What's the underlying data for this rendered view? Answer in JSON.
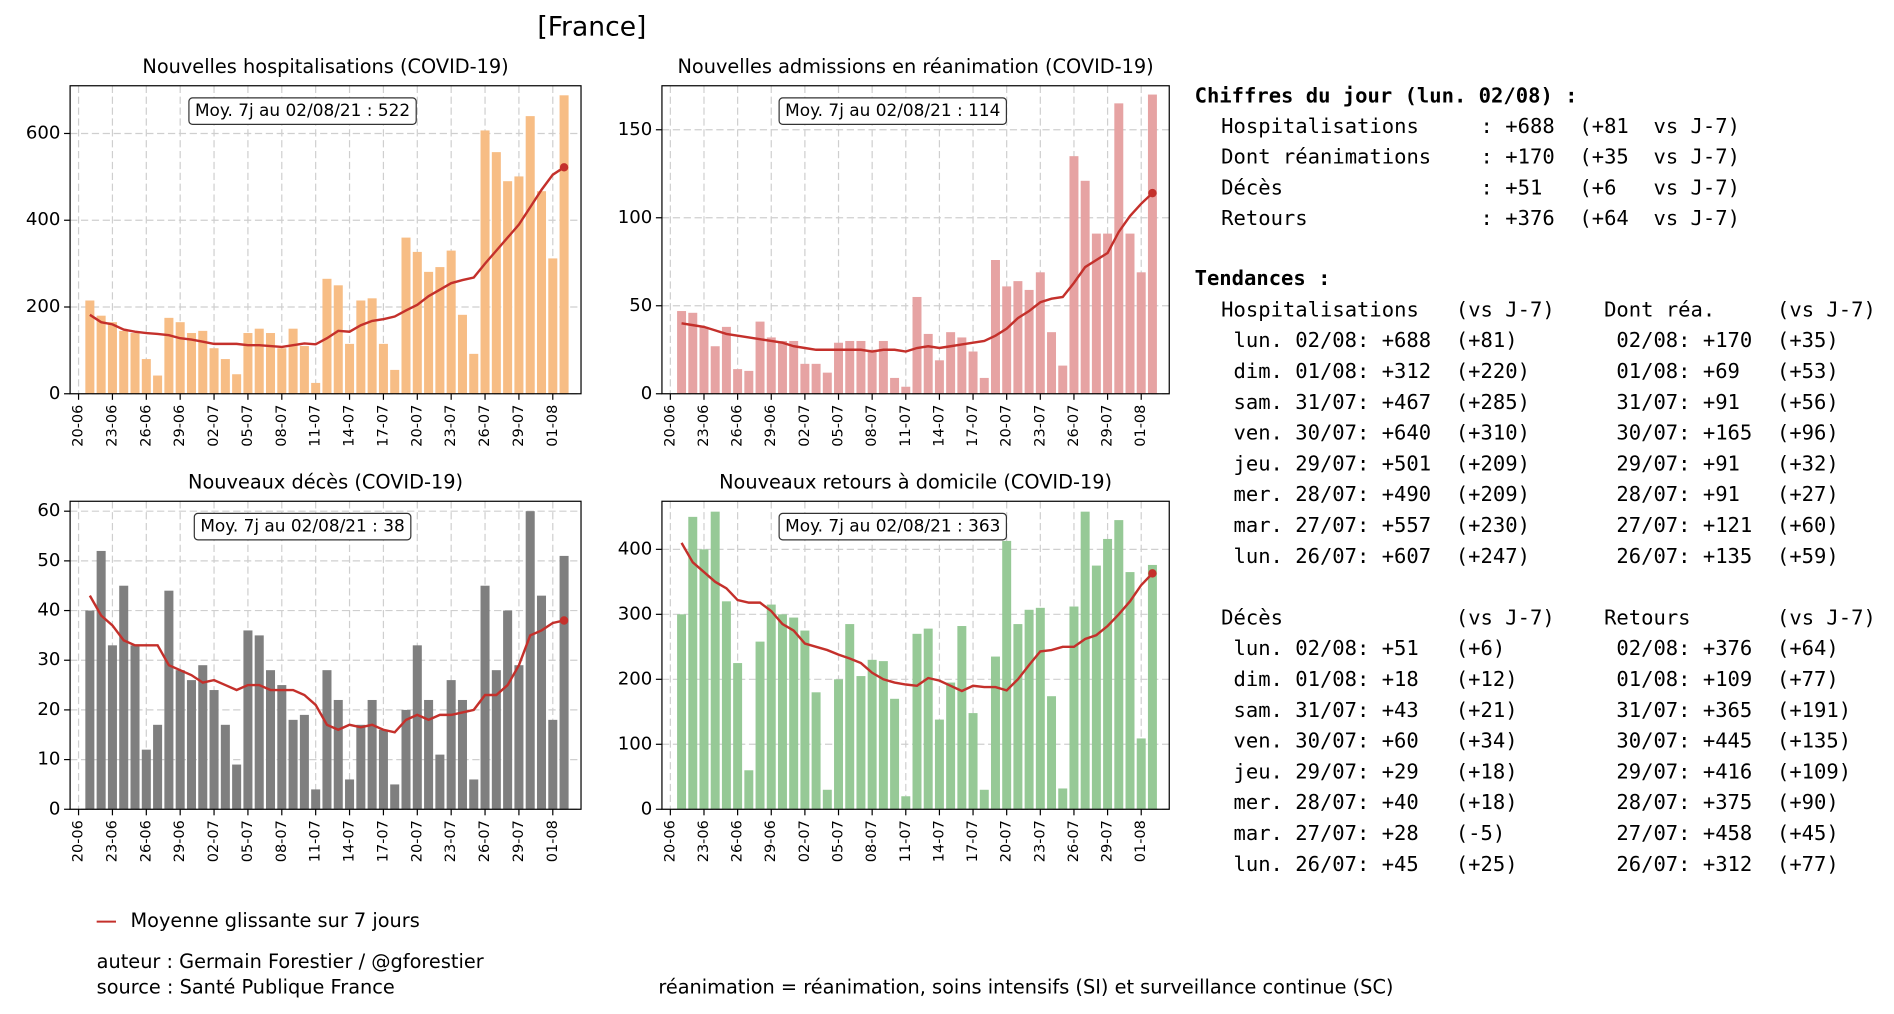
{
  "title": "[France]",
  "chart_data": [
    {
      "type": "bar",
      "title": "Nouvelles hospitalisations (COVID-19)",
      "annotation": "Moy. 7j au 02/08/21 : 522",
      "x": [
        0,
        1,
        2,
        3,
        4,
        5,
        6,
        7,
        8,
        9,
        10,
        11,
        12,
        13,
        14,
        15,
        16,
        17,
        18,
        19,
        20,
        21,
        22,
        23,
        24,
        25,
        26,
        27,
        28,
        29,
        30,
        31,
        32,
        33,
        34,
        35,
        36,
        37,
        38,
        39,
        40,
        41,
        42
      ],
      "xlim": [
        -1.75,
        43.5
      ],
      "xticks": [
        {
          "value": -1,
          "label": "20-06"
        },
        {
          "value": 2,
          "label": "23-06"
        },
        {
          "value": 5,
          "label": "26-06"
        },
        {
          "value": 8,
          "label": "29-06"
        },
        {
          "value": 11,
          "label": "02-07"
        },
        {
          "value": 14,
          "label": "05-07"
        },
        {
          "value": 17,
          "label": "08-07"
        },
        {
          "value": 20,
          "label": "11-07"
        },
        {
          "value": 23,
          "label": "14-07"
        },
        {
          "value": 26,
          "label": "17-07"
        },
        {
          "value": 29,
          "label": "20-07"
        },
        {
          "value": 32,
          "label": "23-07"
        },
        {
          "value": 35,
          "label": "26-07"
        },
        {
          "value": 38,
          "label": "29-07"
        },
        {
          "value": 41,
          "label": "01-08"
        }
      ],
      "ylim": [
        0,
        710
      ],
      "yticks": [
        0,
        200,
        400,
        600
      ],
      "grid": true,
      "series": [
        {
          "color": "#f7bd85",
          "values": [
            215,
            180,
            165,
            145,
            140,
            80,
            42,
            175,
            165,
            140,
            145,
            105,
            80,
            45,
            140,
            150,
            140,
            105,
            150,
            110,
            25,
            265,
            250,
            115,
            215,
            220,
            115,
            55,
            360,
            327,
            281,
            292,
            330,
            182,
            92,
            607,
            557,
            490,
            501,
            640,
            467,
            312,
            688
          ]
        },
        {
          "type": "line",
          "color": "#c4302b",
          "values": [
            182,
            165,
            160,
            148,
            143,
            140,
            138,
            135,
            128,
            125,
            120,
            115,
            115,
            115,
            112,
            112,
            110,
            108,
            112,
            116,
            114,
            128,
            145,
            143,
            158,
            168,
            172,
            178,
            192,
            205,
            225,
            240,
            255,
            262,
            268,
            300,
            330,
            360,
            390,
            430,
            470,
            505,
            522
          ]
        }
      ]
    },
    {
      "type": "bar",
      "title": "Nouvelles admissions en réanimation (COVID-19)",
      "annotation": "Moy. 7j au 02/08/21 : 114",
      "x": [
        0,
        1,
        2,
        3,
        4,
        5,
        6,
        7,
        8,
        9,
        10,
        11,
        12,
        13,
        14,
        15,
        16,
        17,
        18,
        19,
        20,
        21,
        22,
        23,
        24,
        25,
        26,
        27,
        28,
        29,
        30,
        31,
        32,
        33,
        34,
        35,
        36,
        37,
        38,
        39,
        40,
        41,
        42
      ],
      "xlim": [
        -1.75,
        43.5
      ],
      "xticks": [
        {
          "value": -1,
          "label": "20-06"
        },
        {
          "value": 2,
          "label": "23-06"
        },
        {
          "value": 5,
          "label": "26-06"
        },
        {
          "value": 8,
          "label": "29-06"
        },
        {
          "value": 11,
          "label": "02-07"
        },
        {
          "value": 14,
          "label": "05-07"
        },
        {
          "value": 17,
          "label": "08-07"
        },
        {
          "value": 20,
          "label": "11-07"
        },
        {
          "value": 23,
          "label": "14-07"
        },
        {
          "value": 26,
          "label": "17-07"
        },
        {
          "value": 29,
          "label": "20-07"
        },
        {
          "value": 32,
          "label": "23-07"
        },
        {
          "value": 35,
          "label": "26-07"
        },
        {
          "value": 38,
          "label": "29-07"
        },
        {
          "value": 41,
          "label": "01-08"
        }
      ],
      "ylim": [
        0,
        175
      ],
      "yticks": [
        0,
        50,
        100,
        150
      ],
      "grid": true,
      "series": [
        {
          "color": "#e6a3a3",
          "values": [
            47,
            46,
            38,
            27,
            38,
            14,
            13,
            41,
            32,
            30,
            30,
            17,
            17,
            12,
            29,
            30,
            30,
            25,
            30,
            9,
            4,
            55,
            34,
            19,
            35,
            32,
            24,
            9,
            76,
            61,
            64,
            59,
            69,
            35,
            16,
            135,
            121,
            91,
            91,
            165,
            91,
            69,
            170
          ]
        },
        {
          "type": "line",
          "color": "#c4302b",
          "values": [
            40,
            39,
            38,
            36,
            34,
            33,
            32,
            31,
            30,
            29,
            27,
            26,
            25,
            25,
            25,
            25,
            25,
            24,
            25,
            25,
            24,
            26,
            27,
            26,
            27,
            28,
            29,
            30,
            33,
            37,
            43,
            47,
            52,
            54,
            55,
            63,
            72,
            76,
            80,
            92,
            101,
            108,
            114
          ]
        }
      ]
    },
    {
      "type": "bar",
      "title": "Nouveaux décès (COVID-19)",
      "annotation": "Moy. 7j au 02/08/21 : 38",
      "x": [
        0,
        1,
        2,
        3,
        4,
        5,
        6,
        7,
        8,
        9,
        10,
        11,
        12,
        13,
        14,
        15,
        16,
        17,
        18,
        19,
        20,
        21,
        22,
        23,
        24,
        25,
        26,
        27,
        28,
        29,
        30,
        31,
        32,
        33,
        34,
        35,
        36,
        37,
        38,
        39,
        40,
        41,
        42
      ],
      "xlim": [
        -1.75,
        43.5
      ],
      "xticks": [
        {
          "value": -1,
          "label": "20-06"
        },
        {
          "value": 2,
          "label": "23-06"
        },
        {
          "value": 5,
          "label": "26-06"
        },
        {
          "value": 8,
          "label": "29-06"
        },
        {
          "value": 11,
          "label": "02-07"
        },
        {
          "value": 14,
          "label": "05-07"
        },
        {
          "value": 17,
          "label": "08-07"
        },
        {
          "value": 20,
          "label": "11-07"
        },
        {
          "value": 23,
          "label": "14-07"
        },
        {
          "value": 26,
          "label": "17-07"
        },
        {
          "value": 29,
          "label": "20-07"
        },
        {
          "value": 32,
          "label": "23-07"
        },
        {
          "value": 35,
          "label": "26-07"
        },
        {
          "value": 38,
          "label": "29-07"
        },
        {
          "value": 41,
          "label": "01-08"
        }
      ],
      "ylim": [
        0,
        62
      ],
      "yticks": [
        0,
        10,
        20,
        30,
        40,
        50,
        60
      ],
      "grid": true,
      "series": [
        {
          "color": "#7f7f7f",
          "values": [
            40,
            52,
            33,
            45,
            33,
            12,
            17,
            44,
            28,
            26,
            29,
            24,
            17,
            9,
            36,
            35,
            28,
            25,
            18,
            19,
            4,
            28,
            22,
            6,
            17,
            22,
            16,
            5,
            20,
            33,
            22,
            11,
            26,
            22,
            6,
            45,
            28,
            40,
            29,
            60,
            43,
            18,
            51
          ]
        },
        {
          "type": "line",
          "color": "#c4302b",
          "values": [
            43,
            39,
            37,
            34,
            33,
            33,
            33,
            29,
            28,
            27,
            25.5,
            26,
            25,
            24,
            25,
            25,
            24,
            24,
            24,
            23,
            21,
            17,
            16,
            17,
            16.5,
            17,
            16,
            15.5,
            18,
            19,
            18,
            19,
            19,
            19.5,
            20,
            23,
            23,
            25,
            29,
            35,
            36,
            37.5,
            38
          ]
        }
      ]
    },
    {
      "type": "bar",
      "title": "Nouveaux retours à domicile (COVID-19)",
      "annotation": "Moy. 7j au 02/08/21 : 363",
      "x": [
        0,
        1,
        2,
        3,
        4,
        5,
        6,
        7,
        8,
        9,
        10,
        11,
        12,
        13,
        14,
        15,
        16,
        17,
        18,
        19,
        20,
        21,
        22,
        23,
        24,
        25,
        26,
        27,
        28,
        29,
        30,
        31,
        32,
        33,
        34,
        35,
        36,
        37,
        38,
        39,
        40,
        41,
        42
      ],
      "xlim": [
        -1.75,
        43.5
      ],
      "xticks": [
        {
          "value": -1,
          "label": "20-06"
        },
        {
          "value": 2,
          "label": "23-06"
        },
        {
          "value": 5,
          "label": "26-06"
        },
        {
          "value": 8,
          "label": "29-06"
        },
        {
          "value": 11,
          "label": "02-07"
        },
        {
          "value": 14,
          "label": "05-07"
        },
        {
          "value": 17,
          "label": "08-07"
        },
        {
          "value": 20,
          "label": "11-07"
        },
        {
          "value": 23,
          "label": "14-07"
        },
        {
          "value": 26,
          "label": "17-07"
        },
        {
          "value": 29,
          "label": "20-07"
        },
        {
          "value": 32,
          "label": "23-07"
        },
        {
          "value": 35,
          "label": "26-07"
        },
        {
          "value": 38,
          "label": "29-07"
        },
        {
          "value": 41,
          "label": "01-08"
        }
      ],
      "ylim": [
        0,
        474
      ],
      "yticks": [
        0,
        100,
        200,
        300,
        400
      ],
      "grid": true,
      "series": [
        {
          "color": "#96c996",
          "values": [
            300,
            450,
            400,
            458,
            320,
            225,
            60,
            258,
            315,
            300,
            295,
            275,
            180,
            30,
            200,
            285,
            205,
            230,
            228,
            170,
            20,
            270,
            278,
            138,
            195,
            282,
            148,
            30,
            235,
            413,
            285,
            307,
            310,
            174,
            32,
            312,
            458,
            375,
            416,
            445,
            365,
            109,
            376
          ]
        },
        {
          "type": "line",
          "color": "#c4302b",
          "values": [
            410,
            380,
            365,
            350,
            340,
            322,
            318,
            318,
            305,
            285,
            275,
            255,
            250,
            245,
            238,
            232,
            225,
            210,
            200,
            195,
            192,
            190,
            202,
            198,
            190,
            182,
            190,
            188,
            188,
            183,
            200,
            222,
            243,
            245,
            250,
            250,
            262,
            268,
            282,
            300,
            320,
            345,
            363
          ]
        }
      ]
    }
  ],
  "legend": "Moyenne glissante sur 7 jours",
  "footer": {
    "author": "auteur : Germain Forestier / @gforestier",
    "source": "source : Santé Publique France",
    "note": "réanimation = réanimation, soins intensifs (SI) et surveillance continue (SC)"
  },
  "daily_summary": {
    "title": "Chiffres du jour (lun. 02/08) :",
    "lines": [
      "Hospitalisations     : +688  (+81  vs J-7)",
      "Dont réanimations    : +170  (+35  vs J-7)",
      "Décès                : +51   (+6   vs J-7)",
      "Retours              : +376  (+64  vs J-7)"
    ]
  },
  "trends": {
    "title": "Tendances :",
    "blocks": [
      {
        "left_header": "Hospitalisations   (vs J-7)",
        "right_header": "Dont réa.     (vs J-7)",
        "rows": [
          [
            "lun. 02/08: +688  (+81)",
            "02/08: +170  (+35)"
          ],
          [
            "dim. 01/08: +312  (+220)",
            "01/08: +69   (+53)"
          ],
          [
            "sam. 31/07: +467  (+285)",
            "31/07: +91   (+56)"
          ],
          [
            "ven. 30/07: +640  (+310)",
            "30/07: +165  (+96)"
          ],
          [
            "jeu. 29/07: +501  (+209)",
            "29/07: +91   (+32)"
          ],
          [
            "mer. 28/07: +490  (+209)",
            "28/07: +91   (+27)"
          ],
          [
            "mar. 27/07: +557  (+230)",
            "27/07: +121  (+60)"
          ],
          [
            "lun. 26/07: +607  (+247)",
            "26/07: +135  (+59)"
          ]
        ]
      },
      {
        "left_header": "Décès              (vs J-7)",
        "right_header": "Retours       (vs J-7)",
        "rows": [
          [
            "lun. 02/08: +51   (+6)",
            "02/08: +376  (+64)"
          ],
          [
            "dim. 01/08: +18   (+12)",
            "01/08: +109  (+77)"
          ],
          [
            "sam. 31/07: +43   (+21)",
            "31/07: +365  (+191)"
          ],
          [
            "ven. 30/07: +60   (+34)",
            "30/07: +445  (+135)"
          ],
          [
            "jeu. 29/07: +29   (+18)",
            "29/07: +416  (+109)"
          ],
          [
            "mer. 28/07: +40   (+18)",
            "28/07: +375  (+90)"
          ],
          [
            "mar. 27/07: +28   (-5)",
            "27/07: +458  (+45)"
          ],
          [
            "lun. 26/07: +45   (+25)",
            "26/07: +312  (+77)"
          ]
        ]
      }
    ]
  }
}
